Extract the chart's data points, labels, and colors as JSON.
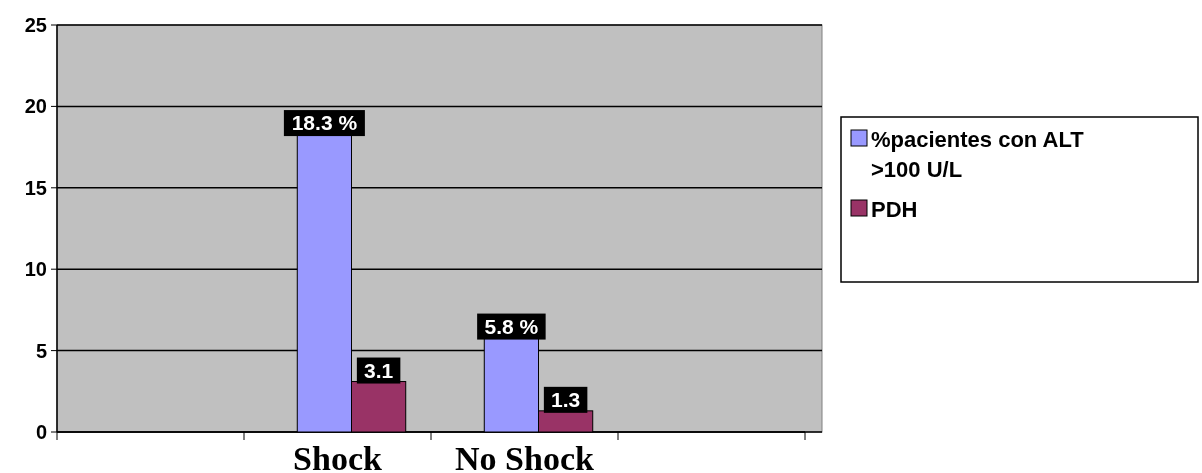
{
  "chart_data": {
    "type": "bar",
    "categories": [
      null,
      "Shock",
      "No Shock",
      null
    ],
    "series": [
      {
        "name": "%pacientes con ALT >100 U/L",
        "color": "#9999ff",
        "values": [
          null,
          18.3,
          5.8,
          null
        ],
        "value_labels": [
          null,
          "18.3 %",
          "5.8 %",
          null
        ]
      },
      {
        "name": "PDH",
        "color": "#993366",
        "values": [
          null,
          3.1,
          1.3,
          null
        ],
        "value_labels": [
          null,
          "3.1",
          "1.3",
          null
        ]
      }
    ],
    "ylim": [
      0,
      25
    ],
    "yticks": [
      0,
      5,
      10,
      15,
      20,
      25
    ],
    "grid": "y",
    "legend": "right"
  }
}
